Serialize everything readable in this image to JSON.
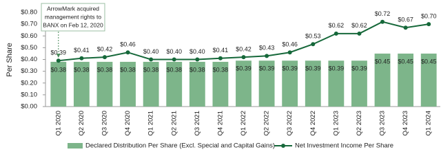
{
  "chart_data": {
    "type": "bar",
    "y_label": "Per Share",
    "annotation": [
      "ArrowMark acquired",
      "management rights to",
      "BANX on Feb 12, 2020"
    ],
    "categories": [
      "Q1 2020",
      "Q2 2020",
      "Q3 2020",
      "Q4 2020",
      "Q1 2021",
      "Q2 2021",
      "Q3 2021",
      "Q4 2021",
      "Q1 2022",
      "Q2 2022",
      "Q3 2022",
      "Q4 2022",
      "Q1 2023",
      "Q2 2023",
      "Q3 2023",
      "Q4 2023",
      "Q1 2024"
    ],
    "series": [
      {
        "name": "Declared Distribution Per Share (Excl. Special and Capital Gains)",
        "type": "bar",
        "color": "#7db58a",
        "values": [
          0.38,
          0.38,
          0.38,
          0.38,
          0.38,
          0.38,
          0.38,
          0.38,
          0.39,
          0.39,
          0.39,
          0.39,
          0.39,
          0.39,
          0.45,
          0.45,
          0.45
        ],
        "value_labels": [
          "$0.38",
          "$0.38",
          "$0.38",
          "$0.38",
          "$0.38",
          "$0.38",
          "$0.38",
          "$0.38",
          "$0.39",
          "$0.39",
          "$0.39",
          "$0.39",
          "$0.39",
          "$0.39",
          "$0.45",
          "$0.45",
          "$0.45"
        ]
      },
      {
        "name": "Net Investment Income Per Share",
        "type": "line",
        "color": "#16683a",
        "values": [
          0.39,
          0.41,
          0.42,
          0.46,
          0.4,
          0.4,
          0.4,
          0.41,
          0.42,
          0.43,
          0.46,
          0.53,
          0.62,
          0.62,
          0.72,
          0.67,
          0.7
        ],
        "value_labels": [
          "$0.39",
          "$0.41",
          "$0.42",
          "$0.46",
          "$0.40",
          "$0.40",
          "$0.40",
          "$0.41",
          "$0.42",
          "$0.43",
          "$0.46",
          "$0.53",
          "$0.62",
          "$0.62",
          "$0.72",
          "$0.67",
          "$0.70"
        ]
      }
    ],
    "ylim": [
      0,
      0.8
    ],
    "yticks": [
      {
        "value": 0,
        "label": "$0.00"
      },
      {
        "value": 0.1,
        "label": "$0.10"
      },
      {
        "value": 0.2,
        "label": "$0.20"
      },
      {
        "value": 0.3,
        "label": "$0.30"
      },
      {
        "value": 0.4,
        "label": "$0.40"
      },
      {
        "value": 0.5,
        "label": "$0.50"
      },
      {
        "value": 0.6,
        "label": "$0.60"
      },
      {
        "value": 0.7,
        "label": "$0.70"
      },
      {
        "value": 0.8,
        "label": "$0.80"
      }
    ]
  }
}
